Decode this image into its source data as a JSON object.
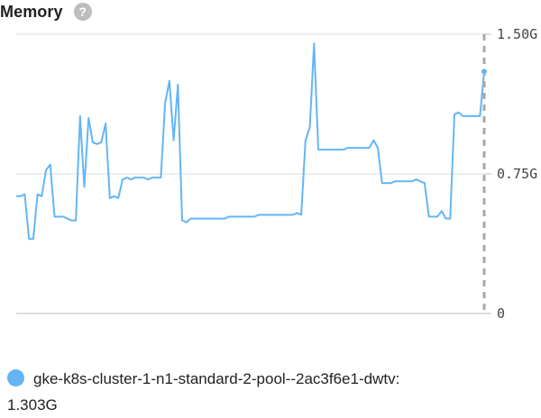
{
  "header": {
    "title": "Memory",
    "help_glyph": "?",
    "help_icon": "help-circle-icon"
  },
  "chart_data": {
    "type": "line",
    "title": "Memory",
    "xlabel": "",
    "ylabel": "",
    "ylim": [
      0,
      1.5
    ],
    "y_ticks": [
      {
        "value": 0,
        "label": "0"
      },
      {
        "value": 0.75,
        "label": "0.75G"
      },
      {
        "value": 1.5,
        "label": "1.50G"
      }
    ],
    "grid": true,
    "legend_position": "bottom-left",
    "series": [
      {
        "name": "gke-k8s-cluster-1-n1-standard-2-pool--2ac3f6e1-dwtv",
        "color": "#64b5f6",
        "x": [
          0,
          1,
          2,
          3,
          4,
          5,
          6,
          7,
          8,
          9,
          10,
          11,
          12,
          13,
          14,
          15,
          16,
          17,
          18,
          19,
          20,
          21,
          22,
          23,
          24,
          25,
          26,
          27,
          28,
          29,
          30,
          31,
          32,
          33,
          34,
          35,
          36,
          37,
          38,
          39,
          40,
          41,
          42,
          43,
          44,
          45,
          46,
          47,
          48,
          49,
          50,
          51,
          52,
          53,
          54,
          55,
          56,
          57,
          58,
          59,
          60,
          61,
          62,
          63,
          64,
          65,
          66,
          67,
          68,
          69,
          70,
          71,
          72,
          73,
          74,
          75,
          76,
          77,
          78,
          79,
          80,
          81,
          82,
          83,
          84,
          85,
          86,
          87,
          88,
          89,
          90,
          91,
          92,
          93,
          94,
          95,
          96,
          97,
          98,
          99,
          100,
          101,
          102,
          103,
          104,
          105,
          106,
          107,
          108,
          109,
          110
        ],
        "values": [
          0.63,
          0.63,
          0.64,
          0.4,
          0.4,
          0.64,
          0.63,
          0.77,
          0.8,
          0.52,
          0.52,
          0.52,
          0.51,
          0.5,
          0.5,
          1.06,
          0.68,
          1.05,
          0.92,
          0.91,
          0.92,
          1.02,
          0.62,
          0.63,
          0.62,
          0.72,
          0.73,
          0.72,
          0.73,
          0.73,
          0.73,
          0.72,
          0.73,
          0.73,
          0.73,
          1.13,
          1.25,
          0.93,
          1.23,
          0.5,
          0.49,
          0.51,
          0.51,
          0.51,
          0.51,
          0.51,
          0.51,
          0.51,
          0.51,
          0.51,
          0.52,
          0.52,
          0.52,
          0.52,
          0.52,
          0.52,
          0.52,
          0.53,
          0.53,
          0.53,
          0.53,
          0.53,
          0.53,
          0.53,
          0.53,
          0.53,
          0.54,
          0.53,
          0.93,
          1.0,
          1.45,
          0.88,
          0.88,
          0.88,
          0.88,
          0.88,
          0.88,
          0.88,
          0.89,
          0.89,
          0.89,
          0.89,
          0.89,
          0.89,
          0.93,
          0.89,
          0.7,
          0.7,
          0.7,
          0.71,
          0.71,
          0.71,
          0.71,
          0.71,
          0.72,
          0.71,
          0.7,
          0.52,
          0.52,
          0.52,
          0.55,
          0.51,
          0.51,
          1.07,
          1.08,
          1.06,
          1.06,
          1.06,
          1.06,
          1.06,
          1.3
        ]
      }
    ]
  },
  "legend": {
    "label": "gke-k8s-cluster-1-n1-standard-2-pool--2ac3f6e1-dwtv:",
    "value": "1.303G"
  }
}
